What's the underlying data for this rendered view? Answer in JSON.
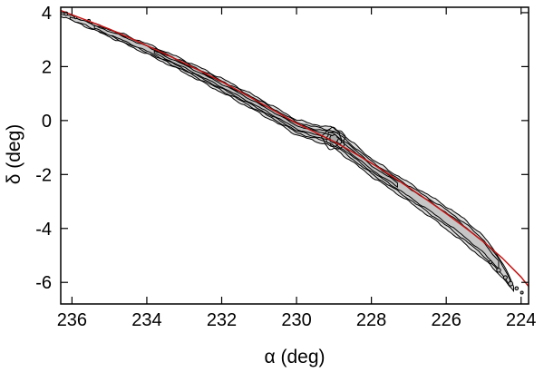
{
  "page": {
    "background": "#ffffff"
  },
  "chart_data": {
    "type": "contour",
    "title": "",
    "xlabel": "α (deg)",
    "ylabel": "δ (deg)",
    "x_axis_reversed": true,
    "xlim": [
      236.3,
      223.8
    ],
    "ylim": [
      -6.8,
      4.2
    ],
    "x_ticks": [
      236,
      234,
      232,
      230,
      228,
      226,
      224
    ],
    "y_ticks": [
      4,
      2,
      0,
      -2,
      -4,
      -6
    ],
    "axis_color": "#000000",
    "grid": false,
    "legend": "none",
    "stream_band": {
      "description": "tidal-stream density contours, nested gray-filled black contour levels",
      "line_color": "#000000",
      "centerline": [
        [
          236.3,
          3.93,
          0.04
        ],
        [
          236.0,
          3.78,
          0.07
        ],
        [
          235.5,
          3.52,
          0.11
        ],
        [
          235.0,
          3.25,
          0.14
        ],
        [
          234.5,
          2.96,
          0.17
        ],
        [
          234.0,
          2.66,
          0.19
        ],
        [
          233.5,
          2.34,
          0.21
        ],
        [
          233.0,
          2.01,
          0.23
        ],
        [
          232.5,
          1.66,
          0.25
        ],
        [
          232.0,
          1.3,
          0.26
        ],
        [
          231.5,
          0.93,
          0.27
        ],
        [
          231.0,
          0.55,
          0.27
        ],
        [
          230.5,
          0.16,
          0.27
        ],
        [
          230.0,
          -0.25,
          0.28
        ],
        [
          229.6,
          -0.42,
          0.3
        ],
        [
          229.2,
          -0.55,
          0.33
        ],
        [
          229.0,
          -0.65,
          0.36
        ],
        [
          228.8,
          -0.85,
          0.38
        ],
        [
          228.5,
          -1.18,
          0.36
        ],
        [
          228.0,
          -1.74,
          0.33
        ],
        [
          227.5,
          -2.2,
          0.33
        ],
        [
          227.0,
          -2.66,
          0.35
        ],
        [
          226.5,
          -3.12,
          0.38
        ],
        [
          226.0,
          -3.6,
          0.42
        ],
        [
          225.5,
          -4.12,
          0.45
        ],
        [
          225.0,
          -4.72,
          0.42
        ],
        [
          224.6,
          -5.35,
          0.32
        ],
        [
          224.4,
          -5.75,
          0.22
        ],
        [
          224.2,
          -6.25,
          0.1
        ]
      ],
      "levels": [
        {
          "scale": 1.0,
          "fill": "#dcdcdc",
          "wiggle": 0.05,
          "alpha_range": [
            236.3,
            224.2
          ]
        },
        {
          "scale": 0.7,
          "fill": "#d0d0d0",
          "wiggle": 0.042,
          "alpha_range": [
            236.05,
            224.3
          ]
        },
        {
          "scale": 0.45,
          "fill": "#c6c6c6",
          "wiggle": 0.036,
          "alpha_range": [
            235.4,
            224.6
          ]
        },
        {
          "scale": 0.22,
          "fill": "#c0c0c0",
          "wiggle": 0.03,
          "alpha_range": [
            233.8,
            227.3
          ]
        }
      ]
    },
    "knot": {
      "description": "dense progenitor knot in the stream",
      "center": [
        229.0,
        -0.68
      ],
      "angle_deg": 28,
      "rings": [
        {
          "ra": 0.3,
          "rd": 0.38,
          "fill": "none"
        },
        {
          "ra": 0.2,
          "rd": 0.26,
          "fill": "none"
        },
        {
          "ra": 0.11,
          "rd": 0.15,
          "fill": "#a8a8a8"
        }
      ]
    },
    "specks": [
      [
        236.16,
        3.96,
        2.0
      ],
      [
        235.9,
        3.82,
        1.4
      ],
      [
        235.55,
        3.7,
        1.5
      ],
      [
        224.82,
        -5.25,
        1.6
      ],
      [
        224.6,
        -5.55,
        2.2
      ],
      [
        224.42,
        -5.82,
        2.0
      ],
      [
        224.28,
        -6.05,
        2.4
      ],
      [
        224.12,
        -6.22,
        1.8
      ],
      [
        223.98,
        -6.38,
        1.5
      ]
    ],
    "fit_line": {
      "name": "stream-fit-curve",
      "color": "#c41414",
      "width": 1.5,
      "points": [
        [
          236.3,
          4.08
        ],
        [
          236.0,
          3.92
        ],
        [
          235.5,
          3.66
        ],
        [
          235.0,
          3.39
        ],
        [
          234.5,
          3.09
        ],
        [
          234.0,
          2.78
        ],
        [
          233.5,
          2.46
        ],
        [
          233.0,
          2.13
        ],
        [
          232.5,
          1.79
        ],
        [
          232.0,
          1.44
        ],
        [
          231.5,
          1.07
        ],
        [
          231.0,
          0.68
        ],
        [
          230.5,
          0.29
        ],
        [
          230.0,
          -0.1
        ],
        [
          229.5,
          -0.44
        ],
        [
          229.0,
          -0.78
        ],
        [
          228.5,
          -1.17
        ],
        [
          228.0,
          -1.58
        ],
        [
          227.5,
          -2.02
        ],
        [
          227.0,
          -2.48
        ],
        [
          226.5,
          -2.95
        ],
        [
          226.0,
          -3.45
        ],
        [
          225.5,
          -3.96
        ],
        [
          225.0,
          -4.5
        ],
        [
          224.5,
          -5.1
        ],
        [
          224.0,
          -5.8
        ],
        [
          223.8,
          -6.15
        ]
      ]
    }
  }
}
